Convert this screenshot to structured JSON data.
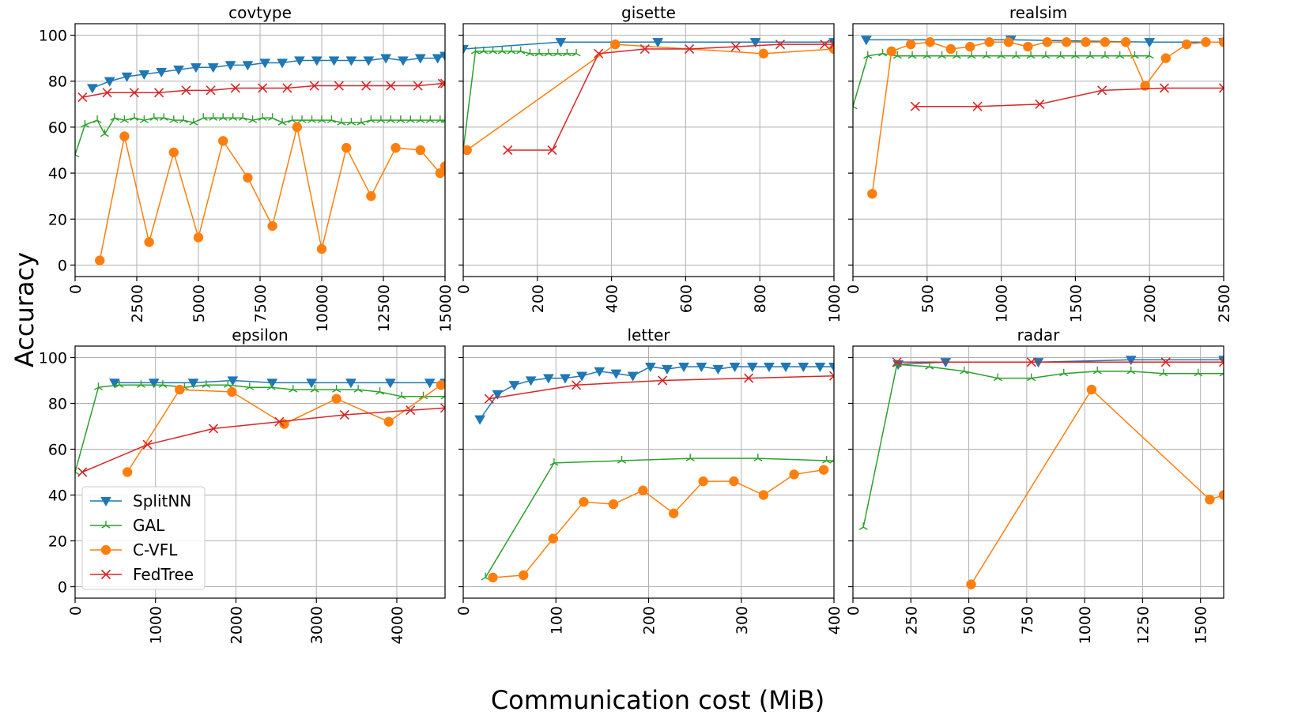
{
  "figure": {
    "xlabel": "Communication cost (MiB)",
    "ylabel": "Accuracy",
    "legend": {
      "placement": "lower-left of epsilon panel",
      "entries": [
        {
          "name": "SplitNN",
          "color": "#1f77b4",
          "marker": "triangle-down"
        },
        {
          "name": "GAL",
          "color": "#2ca02c",
          "marker": "tri-up"
        },
        {
          "name": "C-VFL",
          "color": "#ff7f0e",
          "marker": "circle"
        },
        {
          "name": "FedTree",
          "color": "#d62728",
          "marker": "x"
        }
      ]
    }
  },
  "chart_data": [
    {
      "type": "line",
      "title": "covtype",
      "xlim": [
        0,
        15000
      ],
      "ylim": [
        -5,
        105
      ],
      "xticks": [
        0,
        2500,
        5000,
        7500,
        10000,
        12500,
        15000
      ],
      "xtick_labels": [
        "0",
        "2500",
        "5000",
        "7500",
        "10000",
        "12500",
        "15000"
      ],
      "yticks": [
        0,
        20,
        40,
        60,
        80,
        100
      ],
      "ytick_labels": [
        "0",
        "20",
        "40",
        "60",
        "80",
        "100"
      ],
      "series": [
        {
          "name": "SplitNN",
          "markevery": 1,
          "x": [
            700,
            1400,
            2100,
            2800,
            3500,
            4200,
            4900,
            5600,
            6300,
            7000,
            7700,
            8400,
            9100,
            9800,
            10500,
            11200,
            11900,
            12600,
            13300,
            14000,
            14700,
            15000
          ],
          "y": [
            77,
            80,
            82,
            83,
            84,
            85,
            86,
            86,
            87,
            87,
            88,
            88,
            89,
            89,
            89,
            89,
            89,
            90,
            89,
            90,
            90,
            91
          ]
        },
        {
          "name": "GAL",
          "markevery": 1,
          "x": [
            0,
            400,
            900,
            1200,
            1600,
            2000,
            2400,
            2800,
            3200,
            3600,
            4000,
            4400,
            4800,
            5200,
            5600,
            6000,
            6400,
            6800,
            7200,
            7600,
            8000,
            8400,
            8800,
            9200,
            9600,
            10000,
            10400,
            10800,
            11200,
            11600,
            12000,
            12400,
            12800,
            13200,
            13600,
            14000,
            14400,
            14800,
            15000
          ],
          "y": [
            48,
            61,
            63,
            57,
            64,
            63,
            64,
            63,
            64,
            64,
            63,
            63,
            62,
            64,
            64,
            64,
            64,
            64,
            63,
            64,
            64,
            62,
            63,
            63,
            63,
            63,
            63,
            62,
            62,
            62,
            63,
            63,
            63,
            63,
            63,
            63,
            63,
            63,
            63
          ]
        },
        {
          "name": "C-VFL",
          "markevery": 1,
          "x": [
            1000,
            2000,
            3000,
            4000,
            5000,
            6000,
            7000,
            8000,
            9000,
            10000,
            11000,
            12000,
            13000,
            14000,
            14800,
            15000
          ],
          "y": [
            2,
            56,
            10,
            49,
            12,
            54,
            38,
            17,
            60,
            7,
            51,
            30,
            51,
            50,
            40,
            43
          ]
        },
        {
          "name": "FedTree",
          "markevery": 1,
          "x": [
            300,
            1300,
            2400,
            3400,
            4500,
            5500,
            6500,
            7600,
            8600,
            9700,
            10700,
            11800,
            12800,
            13900,
            14900,
            15000
          ],
          "y": [
            73,
            75,
            75,
            75,
            76,
            76,
            77,
            77,
            77,
            78,
            78,
            78,
            78,
            78,
            79,
            79
          ]
        }
      ]
    },
    {
      "type": "line",
      "title": "gisette",
      "xlim": [
        0,
        1000
      ],
      "ylim": [
        -5,
        105
      ],
      "xticks": [
        0,
        200,
        400,
        600,
        800,
        1000
      ],
      "xtick_labels": [
        "0",
        "200",
        "400",
        "600",
        "800",
        "1000"
      ],
      "yticks": [
        0,
        20,
        40,
        60,
        80,
        100
      ],
      "ytick_labels": [
        "",
        "",
        "",
        "",
        "",
        ""
      ],
      "series": [
        {
          "name": "SplitNN",
          "markevery": 1,
          "x": [
            0,
            263,
            525,
            788,
            1000
          ],
          "y": [
            94,
            97,
            97,
            97,
            97
          ]
        },
        {
          "name": "GAL",
          "markevery": 1,
          "x": [
            0,
            33,
            55,
            80,
            105,
            130,
            155,
            180,
            205,
            230,
            255,
            280,
            305
          ],
          "y": [
            50,
            93,
            93,
            93,
            93,
            93,
            93,
            92,
            92,
            92,
            92,
            92,
            92
          ]
        },
        {
          "name": "C-VFL",
          "markevery": 1,
          "x": [
            10,
            410,
            810,
            1000
          ],
          "y": [
            50,
            96,
            92,
            94
          ]
        },
        {
          "name": "FedTree",
          "markevery": 1,
          "x": [
            120,
            240,
            365,
            490,
            610,
            735,
            855,
            975,
            1000
          ],
          "y": [
            50,
            50,
            92,
            94,
            94,
            95,
            96,
            96,
            96
          ]
        }
      ]
    },
    {
      "type": "line",
      "title": "realsim",
      "xlim": [
        0,
        2500
      ],
      "ylim": [
        -5,
        105
      ],
      "xticks": [
        0,
        500,
        1000,
        1500,
        2000,
        2500
      ],
      "xtick_labels": [
        "0",
        "500",
        "1000",
        "1500",
        "2000",
        "2500"
      ],
      "yticks": [
        0,
        20,
        40,
        60,
        80,
        100
      ],
      "ytick_labels": [
        "",
        "",
        "",
        "",
        "",
        ""
      ],
      "series": [
        {
          "name": "SplitNN",
          "markevery": 1,
          "x": [
            90,
            1065,
            2000,
            2500
          ],
          "y": [
            98,
            98,
            97,
            97
          ]
        },
        {
          "name": "GAL",
          "markevery": 1,
          "x": [
            0,
            100,
            200,
            300,
            400,
            500,
            600,
            700,
            800,
            900,
            1000,
            1100,
            1200,
            1300,
            1400,
            1500,
            1600,
            1700,
            1800,
            1900,
            2000
          ],
          "y": [
            69,
            91,
            92,
            91,
            91,
            91,
            91,
            91,
            91,
            91,
            91,
            91,
            91,
            91,
            91,
            91,
            91,
            91,
            91,
            91,
            91
          ]
        },
        {
          "name": "C-VFL",
          "markevery": 1,
          "x": [
            130,
            260,
            390,
            520,
            660,
            790,
            920,
            1050,
            1180,
            1310,
            1440,
            1570,
            1700,
            1840,
            1970,
            2110,
            2250,
            2380,
            2500
          ],
          "y": [
            31,
            93,
            96,
            97,
            94,
            95,
            97,
            97,
            95,
            97,
            97,
            97,
            97,
            97,
            78,
            90,
            96,
            97,
            97
          ]
        },
        {
          "name": "FedTree",
          "markevery": 1,
          "x": [
            420,
            840,
            1260,
            1680,
            2100,
            2500
          ],
          "y": [
            69,
            69,
            70,
            76,
            77,
            77
          ]
        }
      ]
    },
    {
      "type": "line",
      "title": "epsilon",
      "xlim": [
        0,
        4600
      ],
      "ylim": [
        -5,
        105
      ],
      "xticks": [
        0,
        1000,
        2000,
        3000,
        4000
      ],
      "xtick_labels": [
        "0",
        "1000",
        "2000",
        "3000",
        "4000"
      ],
      "yticks": [
        0,
        20,
        40,
        60,
        80,
        100
      ],
      "ytick_labels": [
        "0",
        "20",
        "40",
        "60",
        "80",
        "100"
      ],
      "series": [
        {
          "name": "SplitNN",
          "markevery": 1,
          "x": [
            490,
            980,
            1470,
            1960,
            2450,
            2940,
            3430,
            3920,
            4410,
            4600
          ],
          "y": [
            89,
            89,
            89,
            90,
            89,
            89,
            89,
            89,
            89,
            89
          ]
        },
        {
          "name": "GAL",
          "markevery": 1,
          "x": [
            0,
            290,
            550,
            820,
            1090,
            1360,
            1630,
            1900,
            2170,
            2440,
            2710,
            2980,
            3250,
            3520,
            3790,
            4060,
            4330,
            4600
          ],
          "y": [
            50,
            87,
            88,
            88,
            88,
            87,
            88,
            88,
            87,
            87,
            86,
            86,
            86,
            86,
            85,
            83,
            83,
            83
          ]
        },
        {
          "name": "C-VFL",
          "markevery": 1,
          "x": [
            650,
            1300,
            1950,
            2600,
            3250,
            3900,
            4550
          ],
          "y": [
            50,
            86,
            85,
            71,
            82,
            72,
            88
          ]
        },
        {
          "name": "FedTree",
          "markevery": 1,
          "x": [
            90,
            900,
            1720,
            2540,
            3350,
            4170,
            4600
          ],
          "y": [
            50,
            62,
            69,
            72,
            75,
            77,
            78
          ]
        }
      ]
    },
    {
      "type": "line",
      "title": "letter",
      "xlim": [
        0,
        400
      ],
      "ylim": [
        -5,
        105
      ],
      "xticks": [
        0,
        100,
        200,
        300,
        400
      ],
      "xtick_labels": [
        "0",
        "100",
        "200",
        "300",
        "400"
      ],
      "yticks": [
        0,
        20,
        40,
        60,
        80,
        100
      ],
      "ytick_labels": [
        "",
        "",
        "",
        "",
        "",
        ""
      ],
      "series": [
        {
          "name": "SplitNN",
          "markevery": 1,
          "x": [
            18,
            37,
            55,
            73,
            92,
            110,
            128,
            147,
            165,
            183,
            202,
            220,
            238,
            257,
            275,
            293,
            312,
            330,
            348,
            367,
            385,
            400
          ],
          "y": [
            73,
            84,
            88,
            90,
            91,
            91,
            92,
            94,
            93,
            92,
            96,
            95,
            96,
            96,
            95,
            96,
            96,
            96,
            96,
            96,
            96,
            96
          ]
        },
        {
          "name": "GAL",
          "markevery": 1,
          "x": [
            24,
            98,
            171,
            245,
            318,
            392,
            400
          ],
          "y": [
            4,
            54,
            55,
            56,
            56,
            55,
            55
          ]
        },
        {
          "name": "C-VFL",
          "markevery": 1,
          "x": [
            32,
            65,
            97,
            130,
            162,
            194,
            227,
            259,
            292,
            324,
            357,
            389
          ],
          "y": [
            4,
            5,
            21,
            37,
            36,
            42,
            32,
            46,
            46,
            40,
            49,
            51
          ]
        },
        {
          "name": "FedTree",
          "markevery": 1,
          "x": [
            28,
            122,
            215,
            308,
            400
          ],
          "y": [
            82,
            88,
            90,
            91,
            92
          ]
        }
      ]
    },
    {
      "type": "line",
      "title": "radar",
      "xlim": [
        0,
        1600
      ],
      "ylim": [
        -5,
        105
      ],
      "xticks": [
        0,
        250,
        500,
        750,
        1000,
        1250,
        1500
      ],
      "xtick_labels": [
        "0",
        "250",
        "500",
        "750",
        "1000",
        "1250",
        "1500"
      ],
      "yticks": [
        0,
        20,
        40,
        60,
        80,
        100
      ],
      "ytick_labels": [
        "",
        "",
        "",
        "",
        "",
        ""
      ],
      "series": [
        {
          "name": "SplitNN",
          "markevery": 1,
          "x": [
            195,
            400,
            800,
            1200,
            1600
          ],
          "y": [
            97,
            98,
            98,
            99,
            99
          ]
        },
        {
          "name": "GAL",
          "markevery": 1,
          "x": [
            45,
            190,
            330,
            480,
            625,
            770,
            910,
            1055,
            1200,
            1340,
            1490,
            1600
          ],
          "y": [
            26,
            97,
            96,
            94,
            91,
            91,
            93,
            94,
            94,
            93,
            93,
            93
          ]
        },
        {
          "name": "C-VFL",
          "markevery": 1,
          "x": [
            510,
            1030,
            1540,
            1600
          ],
          "y": [
            1,
            86,
            38,
            40
          ]
        },
        {
          "name": "FedTree",
          "markevery": 1,
          "x": [
            190,
            770,
            1350,
            1600
          ],
          "y": [
            98,
            98,
            98,
            98
          ]
        }
      ]
    }
  ]
}
